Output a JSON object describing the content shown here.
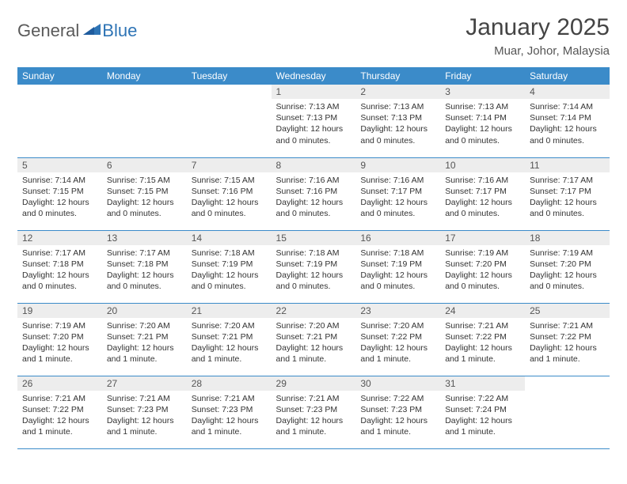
{
  "brand": {
    "part1": "General",
    "part2": "Blue"
  },
  "title": "January 2025",
  "location": "Muar, Johor, Malaysia",
  "colors": {
    "header_bg": "#3b8bc9",
    "header_text": "#ffffff",
    "daynum_bg": "#ededed",
    "border": "#3b8bc9",
    "brand_blue": "#2e74b5",
    "brand_gray": "#5a5a5a"
  },
  "dayNames": [
    "Sunday",
    "Monday",
    "Tuesday",
    "Wednesday",
    "Thursday",
    "Friday",
    "Saturday"
  ],
  "weeks": [
    [
      {
        "empty": true
      },
      {
        "empty": true
      },
      {
        "empty": true
      },
      {
        "n": "1",
        "sr": "7:13 AM",
        "ss": "7:13 PM",
        "dl": "12 hours and 0 minutes."
      },
      {
        "n": "2",
        "sr": "7:13 AM",
        "ss": "7:13 PM",
        "dl": "12 hours and 0 minutes."
      },
      {
        "n": "3",
        "sr": "7:13 AM",
        "ss": "7:14 PM",
        "dl": "12 hours and 0 minutes."
      },
      {
        "n": "4",
        "sr": "7:14 AM",
        "ss": "7:14 PM",
        "dl": "12 hours and 0 minutes."
      }
    ],
    [
      {
        "n": "5",
        "sr": "7:14 AM",
        "ss": "7:15 PM",
        "dl": "12 hours and 0 minutes."
      },
      {
        "n": "6",
        "sr": "7:15 AM",
        "ss": "7:15 PM",
        "dl": "12 hours and 0 minutes."
      },
      {
        "n": "7",
        "sr": "7:15 AM",
        "ss": "7:16 PM",
        "dl": "12 hours and 0 minutes."
      },
      {
        "n": "8",
        "sr": "7:16 AM",
        "ss": "7:16 PM",
        "dl": "12 hours and 0 minutes."
      },
      {
        "n": "9",
        "sr": "7:16 AM",
        "ss": "7:17 PM",
        "dl": "12 hours and 0 minutes."
      },
      {
        "n": "10",
        "sr": "7:16 AM",
        "ss": "7:17 PM",
        "dl": "12 hours and 0 minutes."
      },
      {
        "n": "11",
        "sr": "7:17 AM",
        "ss": "7:17 PM",
        "dl": "12 hours and 0 minutes."
      }
    ],
    [
      {
        "n": "12",
        "sr": "7:17 AM",
        "ss": "7:18 PM",
        "dl": "12 hours and 0 minutes."
      },
      {
        "n": "13",
        "sr": "7:17 AM",
        "ss": "7:18 PM",
        "dl": "12 hours and 0 minutes."
      },
      {
        "n": "14",
        "sr": "7:18 AM",
        "ss": "7:19 PM",
        "dl": "12 hours and 0 minutes."
      },
      {
        "n": "15",
        "sr": "7:18 AM",
        "ss": "7:19 PM",
        "dl": "12 hours and 0 minutes."
      },
      {
        "n": "16",
        "sr": "7:18 AM",
        "ss": "7:19 PM",
        "dl": "12 hours and 0 minutes."
      },
      {
        "n": "17",
        "sr": "7:19 AM",
        "ss": "7:20 PM",
        "dl": "12 hours and 0 minutes."
      },
      {
        "n": "18",
        "sr": "7:19 AM",
        "ss": "7:20 PM",
        "dl": "12 hours and 0 minutes."
      }
    ],
    [
      {
        "n": "19",
        "sr": "7:19 AM",
        "ss": "7:20 PM",
        "dl": "12 hours and 1 minute."
      },
      {
        "n": "20",
        "sr": "7:20 AM",
        "ss": "7:21 PM",
        "dl": "12 hours and 1 minute."
      },
      {
        "n": "21",
        "sr": "7:20 AM",
        "ss": "7:21 PM",
        "dl": "12 hours and 1 minute."
      },
      {
        "n": "22",
        "sr": "7:20 AM",
        "ss": "7:21 PM",
        "dl": "12 hours and 1 minute."
      },
      {
        "n": "23",
        "sr": "7:20 AM",
        "ss": "7:22 PM",
        "dl": "12 hours and 1 minute."
      },
      {
        "n": "24",
        "sr": "7:21 AM",
        "ss": "7:22 PM",
        "dl": "12 hours and 1 minute."
      },
      {
        "n": "25",
        "sr": "7:21 AM",
        "ss": "7:22 PM",
        "dl": "12 hours and 1 minute."
      }
    ],
    [
      {
        "n": "26",
        "sr": "7:21 AM",
        "ss": "7:22 PM",
        "dl": "12 hours and 1 minute."
      },
      {
        "n": "27",
        "sr": "7:21 AM",
        "ss": "7:23 PM",
        "dl": "12 hours and 1 minute."
      },
      {
        "n": "28",
        "sr": "7:21 AM",
        "ss": "7:23 PM",
        "dl": "12 hours and 1 minute."
      },
      {
        "n": "29",
        "sr": "7:21 AM",
        "ss": "7:23 PM",
        "dl": "12 hours and 1 minute."
      },
      {
        "n": "30",
        "sr": "7:22 AM",
        "ss": "7:23 PM",
        "dl": "12 hours and 1 minute."
      },
      {
        "n": "31",
        "sr": "7:22 AM",
        "ss": "7:24 PM",
        "dl": "12 hours and 1 minute."
      },
      {
        "empty": true
      }
    ]
  ],
  "labels": {
    "sunrise": "Sunrise:",
    "sunset": "Sunset:",
    "daylight": "Daylight:"
  }
}
